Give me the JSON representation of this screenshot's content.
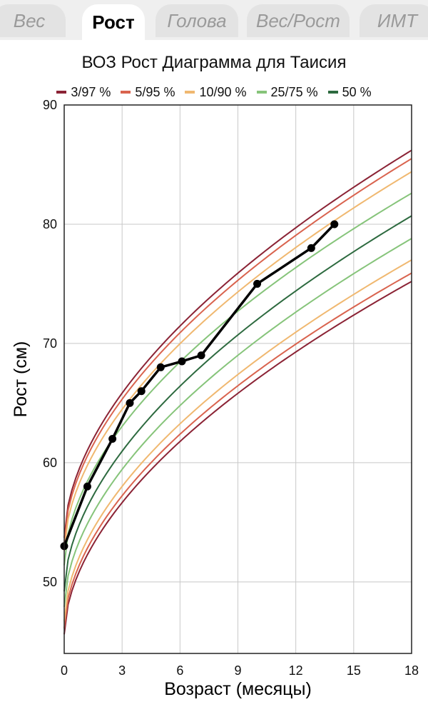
{
  "tabs": [
    {
      "label": "Вес",
      "active": false
    },
    {
      "label": "Рост",
      "active": true
    },
    {
      "label": "Голова",
      "active": false
    },
    {
      "label": "Вес/Рост",
      "active": false
    },
    {
      "label": "ИМТ",
      "active": false
    }
  ],
  "chart_data": {
    "type": "line",
    "title": "ВОЗ Рост Диаграмма для Таисия",
    "xlabel": "Возраст (месяцы)",
    "ylabel": "Рост (см)",
    "xlim": [
      0,
      18
    ],
    "ylim": [
      44,
      90
    ],
    "xticks": [
      0,
      3,
      6,
      9,
      12,
      15,
      18
    ],
    "yticks": [
      50,
      60,
      70,
      80,
      90
    ],
    "xtick_labels": [
      "0",
      "3",
      "6",
      "9",
      "12",
      "15",
      "18"
    ],
    "ytick_labels": [
      "50",
      "60",
      "70",
      "80",
      "90"
    ],
    "grid": true,
    "legend": [
      {
        "label": "3/97 %",
        "color": "#8b2335"
      },
      {
        "label": "5/95 %",
        "color": "#d9634e"
      },
      {
        "label": "10/90 %",
        "color": "#f0b870"
      },
      {
        "label": "25/75 %",
        "color": "#86c47a"
      },
      {
        "label": "50 %",
        "color": "#2d6a3f"
      }
    ],
    "percentile_curves": [
      {
        "band": "3/97 %",
        "color": "#8b2335",
        "x": [
          0,
          18
        ],
        "lower": [
          45.6,
          75.2
        ],
        "upper": [
          53.7,
          86.2
        ]
      },
      {
        "band": "5/95 %",
        "color": "#d9634e",
        "x": [
          0,
          18
        ],
        "lower": [
          46.1,
          75.9
        ],
        "upper": [
          53.3,
          85.5
        ]
      },
      {
        "band": "10/90 %",
        "color": "#f0b870",
        "x": [
          0,
          18
        ],
        "lower": [
          46.7,
          77.0
        ],
        "upper": [
          52.6,
          84.4
        ]
      },
      {
        "band": "25/75 %",
        "color": "#86c47a",
        "x": [
          0,
          18
        ],
        "lower": [
          47.9,
          78.8
        ],
        "upper": [
          51.4,
          82.6
        ]
      },
      {
        "band": "50 %",
        "color": "#2d6a3f",
        "x": [
          0,
          18
        ],
        "lower": [
          49.2,
          80.7
        ],
        "upper": [
          49.2,
          80.7
        ]
      }
    ],
    "series": [
      {
        "color": "#000000",
        "x": [
          0,
          1.2,
          2.5,
          3.4,
          4.0,
          5.0,
          6.1,
          7.1,
          10.0,
          12.8,
          14.0
        ],
        "y": [
          53,
          58,
          62,
          65,
          66,
          68,
          68.5,
          69,
          75,
          78,
          80
        ]
      }
    ]
  }
}
